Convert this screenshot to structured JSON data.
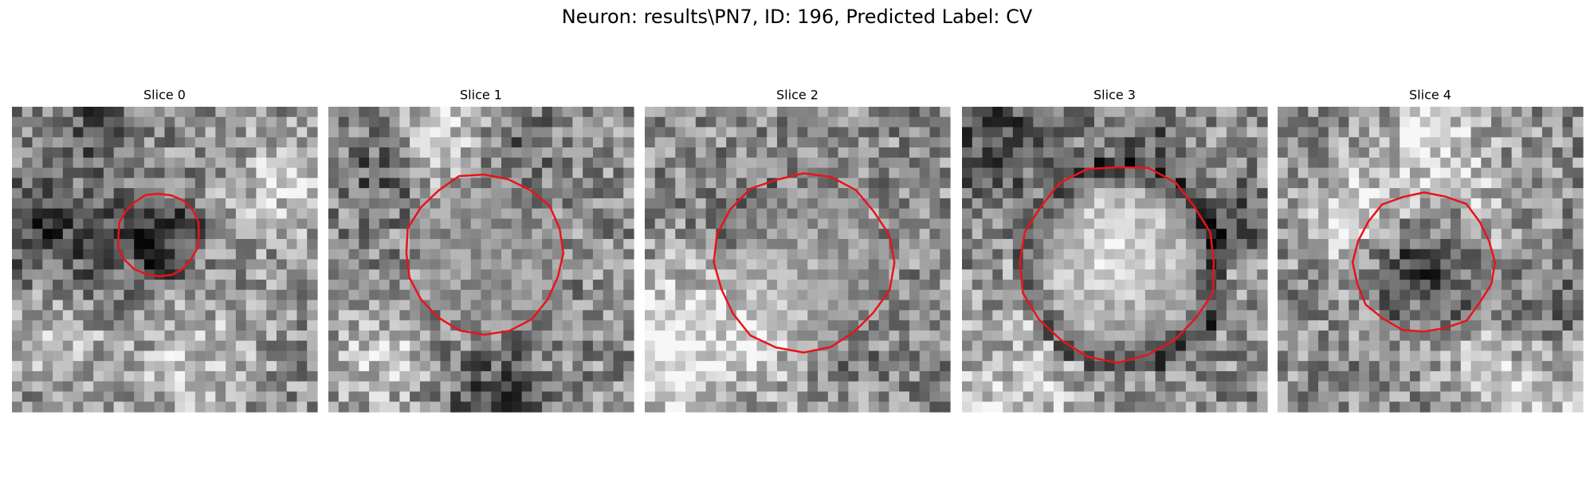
{
  "figure": {
    "title": "Neuron: results\\PN7, ID: 196, Predicted Label: CV",
    "panels": [
      {
        "title": "Slice 0"
      },
      {
        "title": "Slice 1"
      },
      {
        "title": "Slice 2"
      },
      {
        "title": "Slice 3"
      },
      {
        "title": "Slice 4"
      }
    ]
  }
}
